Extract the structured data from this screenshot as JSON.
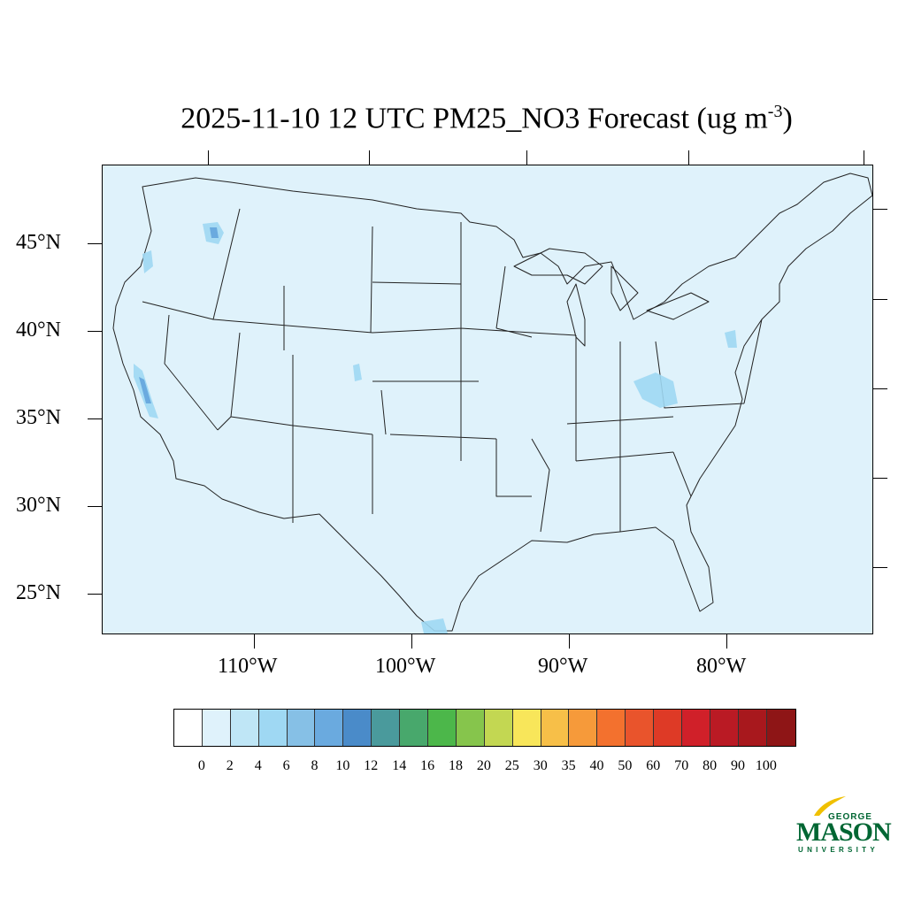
{
  "title": {
    "text": "2025-11-10 12 UTC PM25_NO3 Forecast (ug m",
    "superscript": "-3",
    "close": ")"
  },
  "map": {
    "background_color": "#dff2fb",
    "lat_labels": [
      "45°N",
      "40°N",
      "35°N",
      "30°N",
      "25°N"
    ],
    "lon_labels": [
      "110°W",
      "100°W",
      "90°W",
      "80°W"
    ]
  },
  "colorbar": {
    "labels": [
      "0",
      "2",
      "4",
      "6",
      "8",
      "10",
      "12",
      "14",
      "16",
      "18",
      "20",
      "25",
      "30",
      "35",
      "40",
      "50",
      "60",
      "70",
      "80",
      "90",
      "100"
    ],
    "colors": [
      "#ffffff",
      "#dff2fb",
      "#bfe6f6",
      "#9fd8f3",
      "#86c0e6",
      "#6aaadf",
      "#4a8bc9",
      "#4a9a9c",
      "#48a86c",
      "#4cb74a",
      "#86c54c",
      "#c3d752",
      "#f8e65a",
      "#f7bf48",
      "#f69a3a",
      "#f3712e",
      "#e9542c",
      "#de3a26",
      "#d02029",
      "#ba1a24",
      "#a8181d",
      "#8e1516"
    ]
  },
  "logo": {
    "top": "GEORGE",
    "main": "MASON",
    "bottom": "UNIVERSITY",
    "color": "#006633",
    "accent": "#f0c000"
  }
}
